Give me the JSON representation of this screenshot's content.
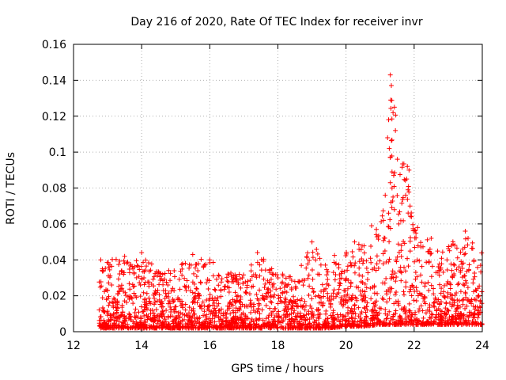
{
  "chart_data": {
    "type": "scatter",
    "title": "Day 216 of 2020, Rate Of TEC Index for receiver invr",
    "xlabel": "GPS time / hours",
    "ylabel": "ROTI / TECUs",
    "xlim": [
      12,
      24
    ],
    "ylim": [
      0,
      0.16
    ],
    "xticks": [
      12,
      14,
      16,
      18,
      20,
      22,
      24
    ],
    "xtick_labels": [
      "12",
      "14",
      "16",
      "18",
      "20",
      "22",
      "24"
    ],
    "yticks": [
      0,
      0.02,
      0.04,
      0.06,
      0.08,
      0.1,
      0.12,
      0.14,
      0.16
    ],
    "ytick_labels": [
      "0",
      "0.02",
      "0.04",
      "0.06",
      "0.08",
      "0.1",
      "0.12",
      "0.14",
      "0.16"
    ],
    "grid": true,
    "marker": "+",
    "color": "#ff0000",
    "series": [
      {
        "name": "ROTI",
        "data_start_hour": 12.75,
        "data_end_hour": 24.0,
        "envelope_hours": [
          12.75,
          13.0,
          13.5,
          14.0,
          14.5,
          15.0,
          15.5,
          16.0,
          16.5,
          17.0,
          17.5,
          18.0,
          18.5,
          19.0,
          19.5,
          20.0,
          20.5,
          21.0,
          21.2,
          21.3,
          21.5,
          21.8,
          22.0,
          22.5,
          23.0,
          23.5,
          24.0
        ],
        "envelope_upper": [
          0.04,
          0.04,
          0.041,
          0.044,
          0.034,
          0.036,
          0.043,
          0.04,
          0.033,
          0.032,
          0.044,
          0.036,
          0.03,
          0.049,
          0.04,
          0.05,
          0.049,
          0.06,
          0.09,
          0.143,
          0.125,
          0.092,
          0.058,
          0.05,
          0.048,
          0.056,
          0.045
        ],
        "envelope_lower": [
          0.002,
          0.002,
          0.002,
          0.002,
          0.002,
          0.002,
          0.002,
          0.002,
          0.002,
          0.002,
          0.002,
          0.002,
          0.002,
          0.002,
          0.002,
          0.003,
          0.003,
          0.004,
          0.004,
          0.004,
          0.004,
          0.004,
          0.004,
          0.004,
          0.004,
          0.004,
          0.004
        ],
        "points": [
          [
            21.3,
            0.143
          ],
          [
            21.33,
            0.137
          ],
          [
            21.31,
            0.129
          ],
          [
            21.42,
            0.125
          ],
          [
            21.38,
            0.122
          ],
          [
            21.25,
            0.118
          ],
          [
            21.45,
            0.112
          ],
          [
            21.22,
            0.108
          ],
          [
            21.27,
            0.102
          ],
          [
            21.3,
            0.097
          ],
          [
            21.8,
            0.092
          ],
          [
            21.85,
            0.09
          ],
          [
            21.35,
            0.089
          ],
          [
            21.4,
            0.087
          ],
          [
            21.78,
            0.085
          ],
          [
            21.3,
            0.083
          ],
          [
            21.35,
            0.08
          ],
          [
            21.82,
            0.079
          ],
          [
            21.75,
            0.076
          ],
          [
            21.38,
            0.075
          ],
          [
            21.32,
            0.072
          ],
          [
            21.88,
            0.07
          ],
          [
            21.42,
            0.068
          ],
          [
            21.25,
            0.066
          ],
          [
            21.92,
            0.064
          ],
          [
            20.75,
            0.059
          ],
          [
            21.1,
            0.062
          ],
          [
            21.55,
            0.06
          ],
          [
            23.5,
            0.056
          ],
          [
            20.25,
            0.05
          ],
          [
            19.0,
            0.05
          ],
          [
            22.1,
            0.058
          ],
          [
            22.5,
            0.052
          ],
          [
            23.1,
            0.048
          ],
          [
            14.0,
            0.044
          ],
          [
            17.4,
            0.044
          ],
          [
            15.5,
            0.043
          ],
          [
            13.5,
            0.042
          ],
          [
            12.8,
            0.04
          ],
          [
            16.0,
            0.04
          ]
        ]
      }
    ]
  }
}
